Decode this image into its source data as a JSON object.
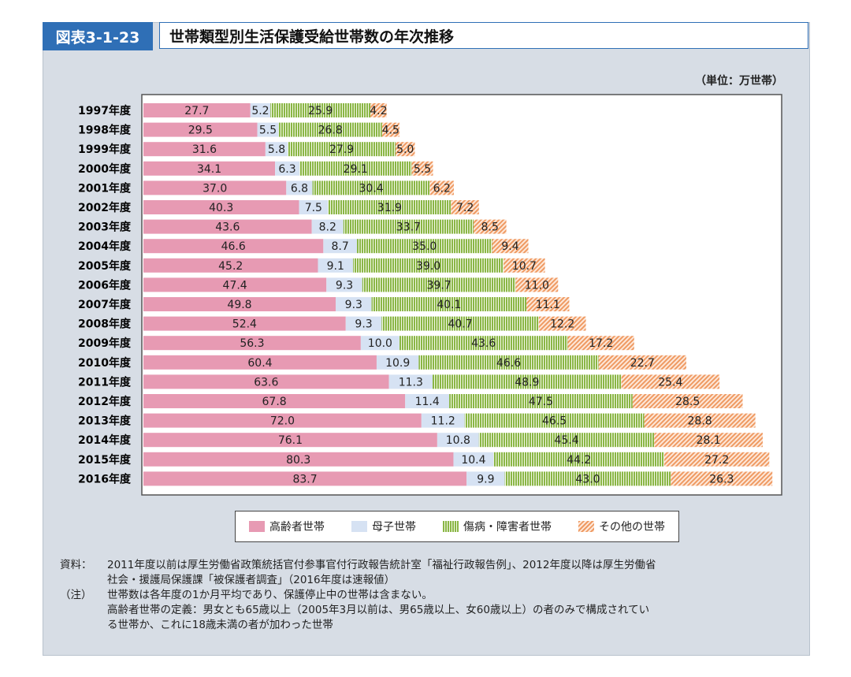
{
  "header": {
    "badge": "図表3-1-23",
    "title": "世帯類型別生活保護受給世帯数の年次推移"
  },
  "unit_label": "（単位：万世帯）",
  "legend": {
    "elderly": "高齢者世帯",
    "single_mother": "母子世帯",
    "sick_disabled": "傷病・障害者世帯",
    "other": "その他の世帯"
  },
  "notes": {
    "source_key": "資料：",
    "source_line1": "2011年度以前は厚生労働省政策統括官付参事官付行政報告統計室「福祉行政報告例」、2012年度以降は厚生労働省",
    "source_line2": "社会・援護局保護課「被保護者調査」（2016年度は速報値）",
    "note_key": "（注）",
    "note_line1": "世帯数は各年度の1か月平均であり、保護停止中の世帯は含まない。",
    "note_line2": "高齢者世帯の定義：男女とも65歳以上（2005年3月以前は、男65歳以上、女60歳以上）の者のみで構成されてい",
    "note_line3": "る世帯か、これに18歳未満の者が加わった世帯"
  },
  "colors": {
    "elderly": "#e79ab3",
    "single_mother": "#d6e2f3",
    "sick_disabled": "#8ab646",
    "other": "#ef9a62"
  },
  "chart_data": {
    "type": "bar",
    "orientation": "horizontal",
    "stacked": true,
    "title": "世帯類型別生活保護受給世帯数の年次推移",
    "unit": "万世帯",
    "xlim": [
      0,
      163
    ],
    "grid": false,
    "legend_position": "bottom",
    "categories": [
      "1997年度",
      "1998年度",
      "1999年度",
      "2000年度",
      "2001年度",
      "2002年度",
      "2003年度",
      "2004年度",
      "2005年度",
      "2006年度",
      "2007年度",
      "2008年度",
      "2009年度",
      "2010年度",
      "2011年度",
      "2012年度",
      "2013年度",
      "2014年度",
      "2015年度",
      "2016年度"
    ],
    "series": [
      {
        "name": "高齢者世帯",
        "values": [
          27.7,
          29.5,
          31.6,
          34.1,
          37.0,
          40.3,
          43.6,
          46.6,
          45.2,
          47.4,
          49.8,
          52.4,
          56.3,
          60.4,
          63.6,
          67.8,
          72.0,
          76.1,
          80.3,
          83.7
        ]
      },
      {
        "name": "母子世帯",
        "values": [
          5.2,
          5.5,
          5.8,
          6.3,
          6.8,
          7.5,
          8.2,
          8.7,
          9.1,
          9.3,
          9.3,
          9.3,
          10.0,
          10.9,
          11.3,
          11.4,
          11.2,
          10.8,
          10.4,
          9.9
        ]
      },
      {
        "name": "傷病・障害者世帯",
        "values": [
          25.9,
          26.8,
          27.9,
          29.1,
          30.4,
          31.9,
          33.7,
          35.0,
          39.0,
          39.7,
          40.1,
          40.7,
          43.6,
          46.6,
          48.9,
          47.5,
          46.5,
          45.4,
          44.2,
          43.0
        ]
      },
      {
        "name": "その他の世帯",
        "values": [
          4.2,
          4.5,
          5.0,
          5.5,
          6.2,
          7.2,
          8.5,
          9.4,
          10.7,
          11.0,
          11.1,
          12.2,
          17.2,
          22.7,
          25.4,
          28.5,
          28.8,
          28.1,
          27.2,
          26.3
        ]
      }
    ],
    "value_labels": [
      [
        "27.7",
        "29.5",
        "31.6",
        "34.1",
        "37.0",
        "40.3",
        "43.6",
        "46.6",
        "45.2",
        "47.4",
        "49.8",
        "52.4",
        "56.3",
        "60.4",
        "63.6",
        "67.8",
        "72.0",
        "76.1",
        "80.3",
        "83.7"
      ],
      [
        "5.2",
        "5.5",
        "5.8",
        "6.3",
        "6.8",
        "7.5",
        "8.2",
        "8.7",
        "9.1",
        "9.3",
        "9.3",
        "9.3",
        "10.0",
        "10.9",
        "11.3",
        "11.4",
        "11.2",
        "10.8",
        "10.4",
        "9.9"
      ],
      [
        "25.9",
        "26.8",
        "27.9",
        "29.1",
        "30.4",
        "31.9",
        "33.7",
        "35.0",
        "39.0",
        "39.7",
        "40.1",
        "40.7",
        "43.6",
        "46.6",
        "48.9",
        "47.5",
        "46.5",
        "45.4",
        "44.2",
        "43.0"
      ],
      [
        "4.2",
        "4.5",
        "5.0",
        "5.5",
        "6.2",
        "7.2",
        "8.5",
        "9.4",
        "10.7",
        "11.0",
        "11.1",
        "12.2",
        "17.2",
        "22.7",
        "25.4",
        "28.5",
        "28.8",
        "28.1",
        "27.2",
        "26.3"
      ]
    ]
  }
}
